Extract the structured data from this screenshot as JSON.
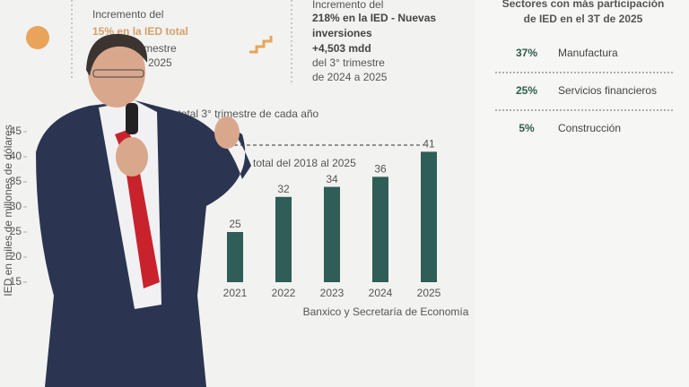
{
  "slide": {
    "stat1": {
      "line1": "Incremento del",
      "headline": "15% en la IED total",
      "line3": "trimestre",
      "line4": "2025"
    },
    "stat2": {
      "line1": "Incremento del",
      "headline1": "218% en la IED - Nuevas",
      "headline2": "inversiones",
      "amount": "+4,503 mdd",
      "line5": "del 3° trimestre",
      "line6": "de 2024 a 2025"
    },
    "sectors": {
      "title1": "Sectores con más participación",
      "title2": "de IED en el 3T de 2025",
      "rows": [
        [
          "37%",
          "Manufactura"
        ],
        [
          "25%",
          "Servicios financieros"
        ],
        [
          "5%",
          "Construcción"
        ]
      ]
    },
    "source": "Banxico y Secretaría de Economía"
  },
  "chart_data": {
    "type": "bar",
    "title": "IED total 3° trimestre de cada año",
    "y_label": "IED en miles de millones de dólares",
    "annotation": "total del 2018 al 2025",
    "categories": [
      "2021",
      "2022",
      "2023",
      "2024",
      "2025"
    ],
    "values": [
      25,
      32,
      34,
      36,
      41
    ],
    "color": "#2e5e55",
    "ylim": [
      15,
      45
    ],
    "yticks": [
      15,
      20,
      25,
      30,
      35,
      40,
      45
    ]
  }
}
